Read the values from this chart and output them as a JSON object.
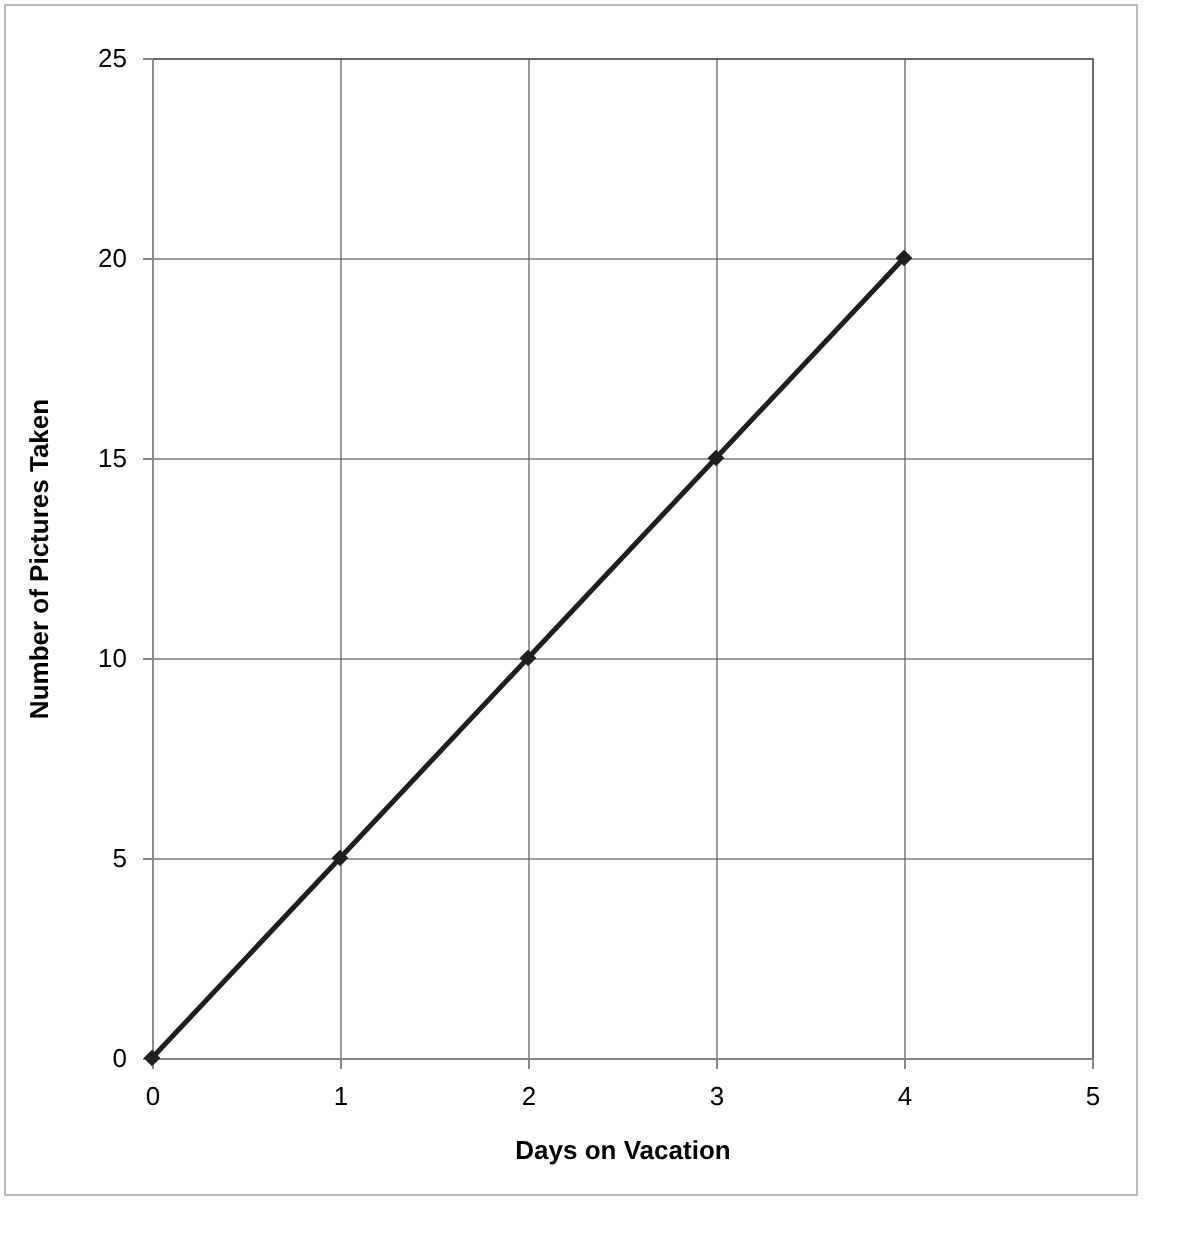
{
  "chart_data": {
    "type": "line",
    "xlabel": "Days on Vacation",
    "ylabel": "Number of Pictures Taken",
    "x": [
      0,
      1,
      2,
      3,
      4
    ],
    "series": [
      {
        "color": "#1f1f1f",
        "values": [
          0,
          5,
          10,
          15,
          20
        ]
      }
    ],
    "xlim": [
      0,
      5
    ],
    "xticks": [
      0,
      1,
      2,
      3,
      4,
      5
    ],
    "ylim": [
      0,
      25
    ],
    "yticks": [
      0,
      5,
      10,
      15,
      20,
      25
    ],
    "grid": true,
    "marker": "diamond",
    "line_style": "solid"
  }
}
